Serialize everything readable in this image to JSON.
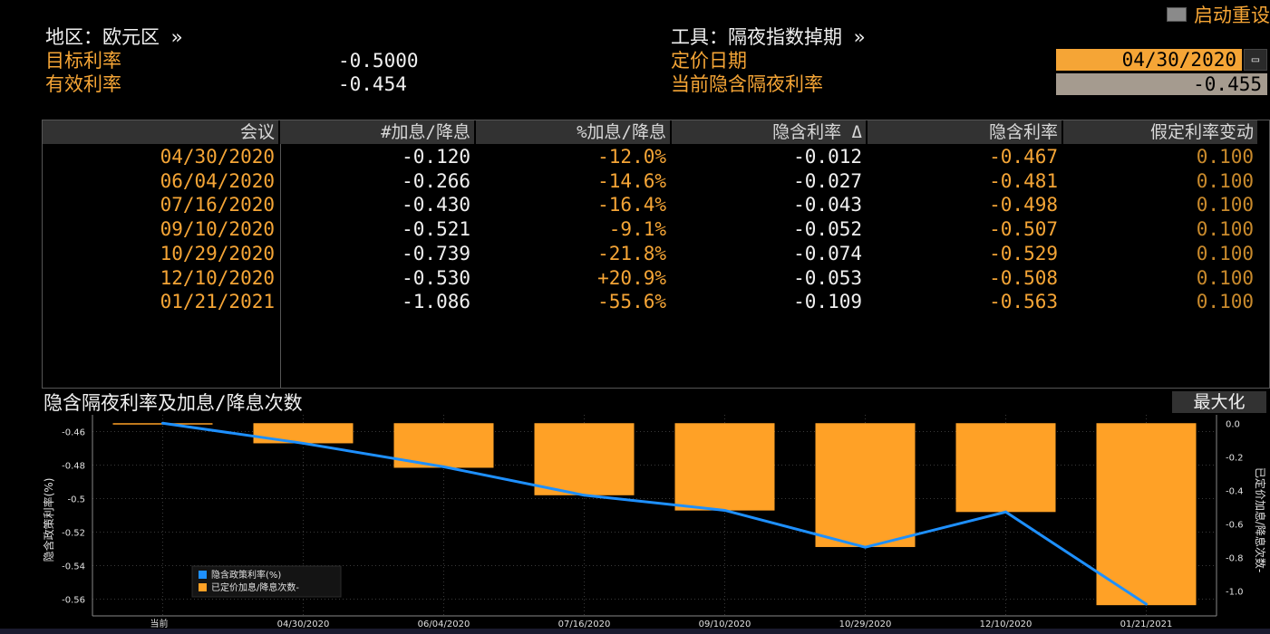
{
  "header": {
    "region_label": "地区：欧元区 »",
    "target_rate_label": "目标利率",
    "target_rate_value": "-0.5000",
    "effective_rate_label": "有效利率",
    "effective_rate_value": "-0.454",
    "instrument_label": "工具：隔夜指数掉期 »",
    "pricing_date_label": "定价日期",
    "pricing_date_value": "04/30/2020",
    "implied_rate_label": "当前隐含隔夜利率",
    "implied_rate_value": "-0.455",
    "restart_label": "启动重设"
  },
  "table": {
    "columns": [
      "会议",
      "#加息/降息",
      "%加息/降息",
      "隐含利率 Δ",
      "隐含利率",
      "假定利率变动"
    ],
    "rows": [
      [
        "04/30/2020",
        "-0.120",
        "-12.0%",
        "-0.012",
        "-0.467",
        "0.100"
      ],
      [
        "06/04/2020",
        "-0.266",
        "-14.6%",
        "-0.027",
        "-0.481",
        "0.100"
      ],
      [
        "07/16/2020",
        "-0.430",
        "-16.4%",
        "-0.043",
        "-0.498",
        "0.100"
      ],
      [
        "09/10/2020",
        "-0.521",
        "-9.1%",
        "-0.052",
        "-0.507",
        "0.100"
      ],
      [
        "10/29/2020",
        "-0.739",
        "-21.8%",
        "-0.074",
        "-0.529",
        "0.100"
      ],
      [
        "12/10/2020",
        "-0.530",
        "+20.9%",
        "-0.053",
        "-0.508",
        "0.100"
      ],
      [
        "01/21/2021",
        "-1.086",
        "-55.6%",
        "-0.109",
        "-0.563",
        "0.100"
      ]
    ]
  },
  "chart_title": "隐含隔夜利率及加息/降息次数",
  "maximize_label": "最大化",
  "chart_data": {
    "type": "bar",
    "categories": [
      "当前",
      "04/30/2020",
      "06/04/2020",
      "07/16/2020",
      "09/10/2020",
      "10/29/2020",
      "12/10/2020",
      "01/21/2021"
    ],
    "series": [
      {
        "name": "隐含政策利率(%)",
        "type": "line",
        "axis": "left",
        "color": "#1e90ff",
        "values": [
          -0.455,
          -0.467,
          -0.481,
          -0.498,
          -0.507,
          -0.529,
          -0.508,
          -0.563
        ]
      },
      {
        "name": "已定价加息/降息次数-",
        "type": "bar",
        "axis": "right",
        "color": "#ffa126",
        "values": [
          0,
          -0.12,
          -0.266,
          -0.43,
          -0.521,
          -0.739,
          -0.53,
          -1.086
        ]
      }
    ],
    "ylabel": "隐含政策利率(%)",
    "ylabel_right": "已定价加息/降息次数-",
    "ylim": [
      -0.57,
      -0.45
    ],
    "ylim_right": [
      -1.15,
      0.05
    ],
    "yticks": [
      -0.46,
      -0.48,
      -0.5,
      -0.52,
      -0.54,
      -0.56
    ],
    "yticks_right": [
      0.0,
      -0.2,
      -0.4,
      -0.6,
      -0.8,
      -1.0
    ],
    "legend_position": "bottom-left",
    "grid": true
  }
}
